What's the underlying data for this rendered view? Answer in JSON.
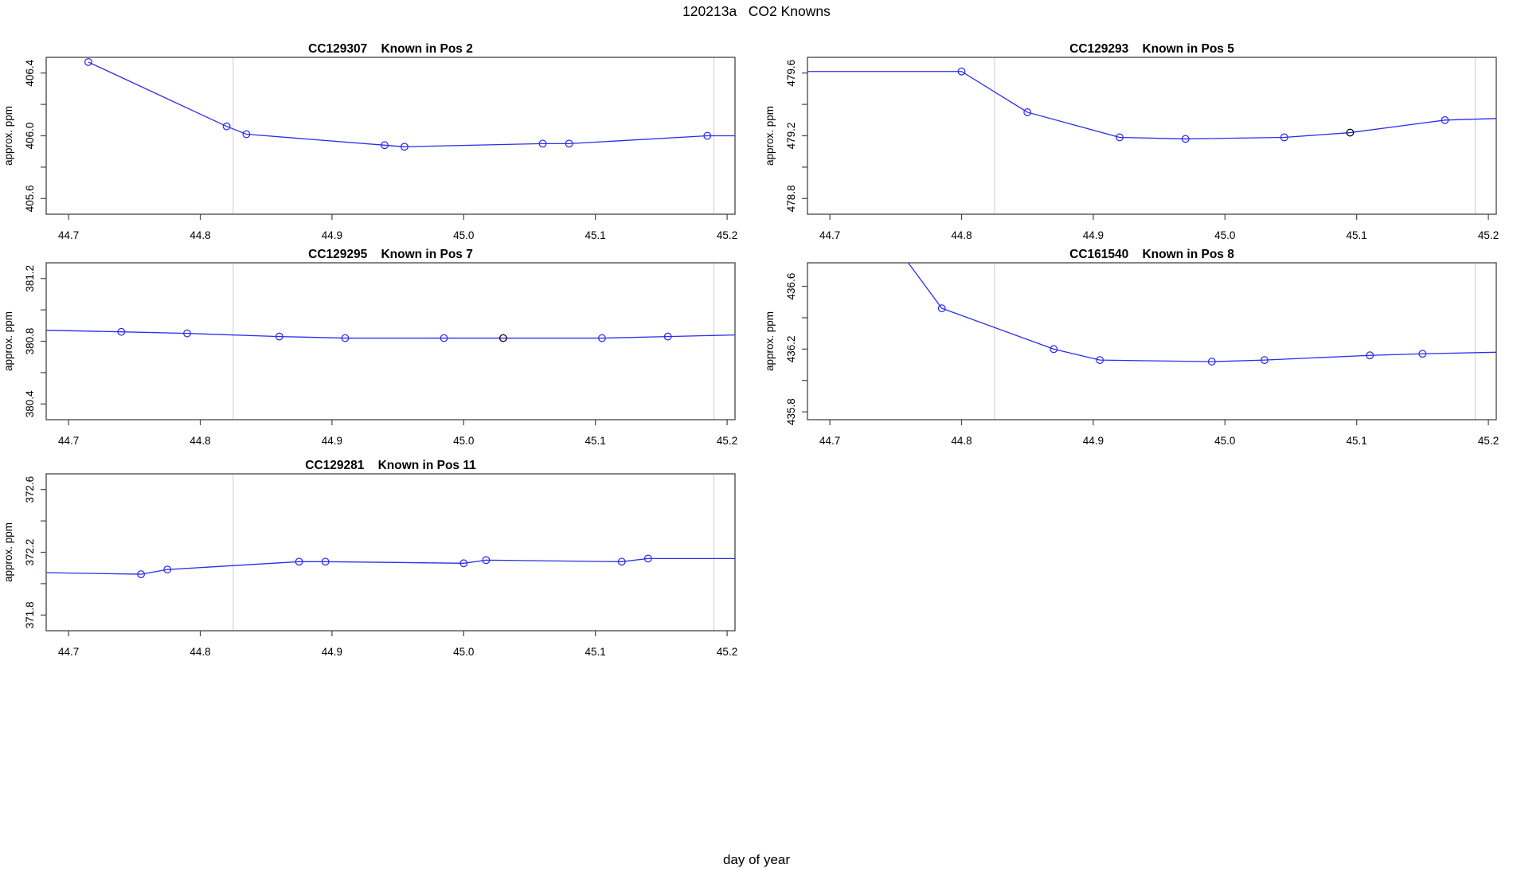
{
  "page": {
    "title": "120213a   CO2 Knowns",
    "bottom_label": "day of year"
  },
  "style": {
    "line_color": "#2b2bee",
    "marker_color": "#2b2bee",
    "flagged_marker_color": "#000000",
    "abline_color": "#d6d6d6",
    "box_color": "#454545",
    "tick_color": "#454545",
    "text_color": "#000000",
    "background": "#ffffff"
  },
  "axes": {
    "x_ticks": [
      {
        "v": 44.7,
        "label": "44.7"
      },
      {
        "v": 44.8,
        "label": "44.8"
      },
      {
        "v": 44.9,
        "label": "44.9"
      },
      {
        "v": 45.0,
        "label": "45.0"
      },
      {
        "v": 45.1,
        "label": "45.1"
      },
      {
        "v": 45.2,
        "label": "45.2"
      }
    ],
    "xlim": [
      44.683,
      45.206
    ],
    "abline_x": [
      44.825,
      45.19
    ]
  },
  "chart_data": [
    {
      "type": "line",
      "id": "pos2",
      "title": "CC129307    Known in Pos 2",
      "ylabel": "approx. ppm",
      "xlabel": "day of year",
      "ylim": [
        405.5,
        406.5
      ],
      "grid": "off",
      "yticks": [
        {
          "v": 405.6,
          "label": "405.6"
        },
        {
          "v": 405.8,
          "label": ""
        },
        {
          "v": 406.0,
          "label": "406.0"
        },
        {
          "v": 406.2,
          "label": ""
        },
        {
          "v": 406.4,
          "label": "406.4"
        }
      ],
      "line_start": null,
      "points": [
        {
          "x": 44.715,
          "y": 406.47
        },
        {
          "x": 44.82,
          "y": 406.06
        },
        {
          "x": 44.835,
          "y": 406.01
        },
        {
          "x": 44.94,
          "y": 405.94
        },
        {
          "x": 44.955,
          "y": 405.93
        },
        {
          "x": 45.06,
          "y": 405.95
        },
        {
          "x": 45.08,
          "y": 405.95
        },
        {
          "x": 45.185,
          "y": 406.0
        }
      ],
      "line_end": {
        "x": 45.206,
        "y": 406.0
      }
    },
    {
      "type": "line",
      "id": "pos5",
      "title": "CC129293    Known in Pos 5",
      "ylabel": "approx. ppm",
      "xlabel": "day of year",
      "ylim": [
        478.7,
        479.7
      ],
      "grid": "off",
      "yticks": [
        {
          "v": 478.8,
          "label": "478.8"
        },
        {
          "v": 479.0,
          "label": ""
        },
        {
          "v": 479.2,
          "label": "479.2"
        },
        {
          "v": 479.4,
          "label": ""
        },
        {
          "v": 479.6,
          "label": "479.6"
        }
      ],
      "line_start": {
        "x": 44.683,
        "y": 479.61
      },
      "points": [
        {
          "x": 44.8,
          "y": 479.61
        },
        {
          "x": 44.85,
          "y": 479.35
        },
        {
          "x": 44.92,
          "y": 479.19
        },
        {
          "x": 44.97,
          "y": 479.18
        },
        {
          "x": 45.045,
          "y": 479.19
        },
        {
          "x": 45.095,
          "y": 479.22,
          "flagged": true
        },
        {
          "x": 45.167,
          "y": 479.3
        }
      ],
      "line_end": {
        "x": 45.206,
        "y": 479.31
      }
    },
    {
      "type": "line",
      "id": "pos7",
      "title": "CC129295    Known in Pos 7",
      "ylabel": "approx. ppm",
      "xlabel": "day of year",
      "ylim": [
        380.3,
        381.3
      ],
      "grid": "off",
      "yticks": [
        {
          "v": 380.4,
          "label": "380.4"
        },
        {
          "v": 380.6,
          "label": ""
        },
        {
          "v": 380.8,
          "label": "380.8"
        },
        {
          "v": 381.0,
          "label": ""
        },
        {
          "v": 381.2,
          "label": "381.2"
        }
      ],
      "line_start": {
        "x": 44.683,
        "y": 380.87
      },
      "points": [
        {
          "x": 44.74,
          "y": 380.86
        },
        {
          "x": 44.79,
          "y": 380.85
        },
        {
          "x": 44.86,
          "y": 380.83
        },
        {
          "x": 44.91,
          "y": 380.82
        },
        {
          "x": 44.985,
          "y": 380.82
        },
        {
          "x": 45.03,
          "y": 380.82,
          "flagged": true
        },
        {
          "x": 45.105,
          "y": 380.82
        },
        {
          "x": 45.155,
          "y": 380.83
        }
      ],
      "line_end": {
        "x": 45.206,
        "y": 380.84
      }
    },
    {
      "type": "line",
      "id": "pos8",
      "title": "CC161540    Known in Pos 8",
      "ylabel": "approx. ppm",
      "xlabel": "day of year",
      "ylim": [
        435.75,
        436.75
      ],
      "grid": "off",
      "yticks": [
        {
          "v": 435.8,
          "label": "435.8"
        },
        {
          "v": 436.0,
          "label": ""
        },
        {
          "v": 436.2,
          "label": "436.2"
        },
        {
          "v": 436.4,
          "label": ""
        },
        {
          "v": 436.6,
          "label": "436.6"
        }
      ],
      "line_start": {
        "x": 44.72,
        "y": 437.2
      },
      "points": [
        {
          "x": 44.785,
          "y": 436.46
        },
        {
          "x": 44.87,
          "y": 436.2
        },
        {
          "x": 44.905,
          "y": 436.13
        },
        {
          "x": 44.99,
          "y": 436.12
        },
        {
          "x": 45.03,
          "y": 436.13
        },
        {
          "x": 45.11,
          "y": 436.16
        },
        {
          "x": 45.15,
          "y": 436.17
        }
      ],
      "line_end": {
        "x": 45.206,
        "y": 436.18
      }
    },
    {
      "type": "line",
      "id": "pos11",
      "title": "CC129281    Known in Pos 11",
      "ylabel": "approx. ppm",
      "xlabel": "day of year",
      "ylim": [
        371.7,
        372.7
      ],
      "grid": "off",
      "yticks": [
        {
          "v": 371.8,
          "label": "371.8"
        },
        {
          "v": 372.0,
          "label": ""
        },
        {
          "v": 372.2,
          "label": "372.2"
        },
        {
          "v": 372.4,
          "label": ""
        },
        {
          "v": 372.6,
          "label": "372.6"
        }
      ],
      "line_start": {
        "x": 44.683,
        "y": 372.07
      },
      "points": [
        {
          "x": 44.755,
          "y": 372.06
        },
        {
          "x": 44.775,
          "y": 372.09
        },
        {
          "x": 44.875,
          "y": 372.14
        },
        {
          "x": 44.895,
          "y": 372.14
        },
        {
          "x": 45.0,
          "y": 372.13
        },
        {
          "x": 45.017,
          "y": 372.15
        },
        {
          "x": 45.12,
          "y": 372.14
        },
        {
          "x": 45.14,
          "y": 372.16
        }
      ],
      "line_end": {
        "x": 45.206,
        "y": 372.16
      }
    }
  ]
}
